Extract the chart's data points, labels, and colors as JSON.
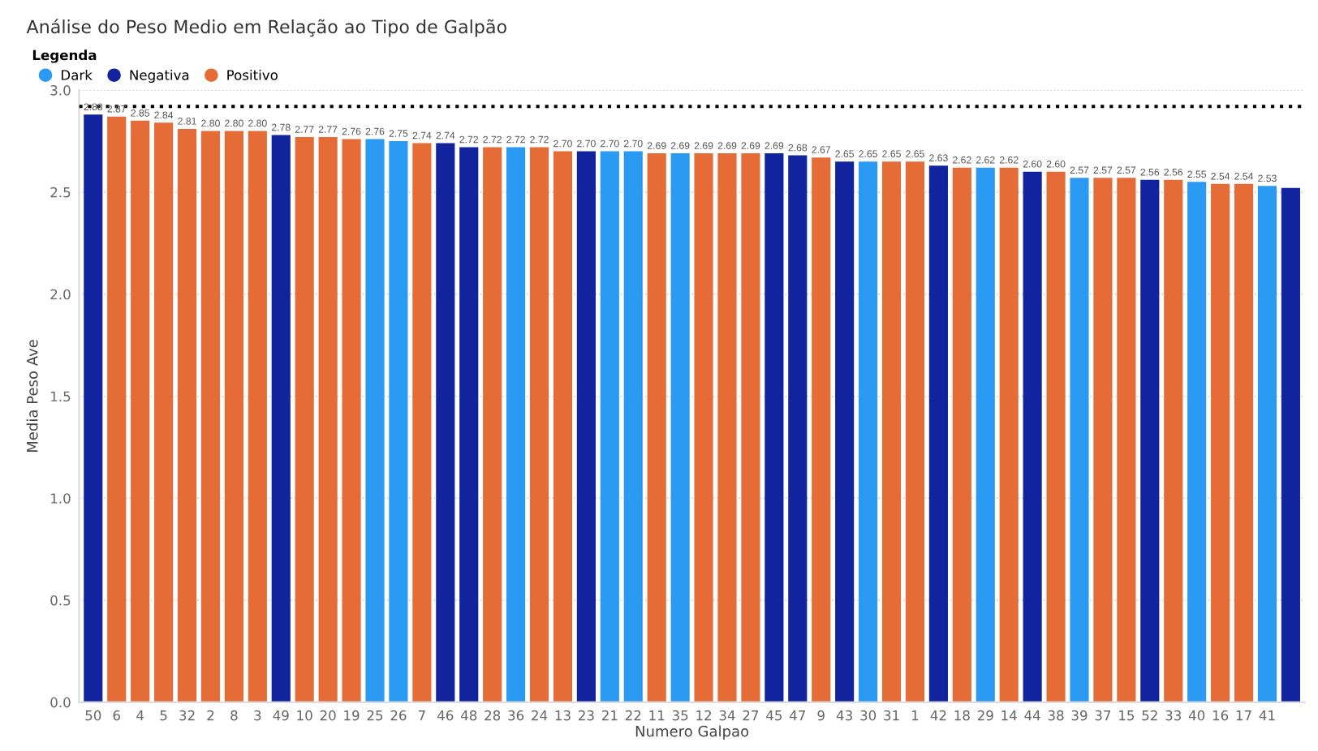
{
  "chart_data": {
    "type": "bar",
    "title": "Análise do Peso Medio em Relação ao Tipo de Galpão",
    "xlabel": "Numero Galpao",
    "ylabel": "Media Peso Ave",
    "legend_title": "Legenda",
    "categories": [
      "50",
      "6",
      "4",
      "5",
      "32",
      "2",
      "8",
      "3",
      "49",
      "10",
      "20",
      "19",
      "25",
      "26",
      "7",
      "46",
      "48",
      "28",
      "36",
      "24",
      "13",
      "23",
      "21",
      "22",
      "11",
      "35",
      "12",
      "34",
      "27",
      "45",
      "47",
      "9",
      "43",
      "30",
      "31",
      "1",
      "42",
      "18",
      "29",
      "14",
      "44",
      "38",
      "39",
      "37",
      "15",
      "52",
      "33",
      "40",
      "16",
      "17",
      "41",
      null
    ],
    "series": [
      {
        "name": "Dark",
        "color": "#2b9af3",
        "values": [
          null,
          null,
          null,
          null,
          null,
          null,
          null,
          null,
          null,
          null,
          null,
          null,
          2.76,
          2.75,
          null,
          null,
          null,
          null,
          2.72,
          null,
          null,
          null,
          2.7,
          2.7,
          null,
          2.69,
          null,
          null,
          null,
          null,
          null,
          null,
          null,
          2.65,
          null,
          null,
          null,
          null,
          2.62,
          null,
          null,
          null,
          2.57,
          null,
          null,
          null,
          null,
          2.55,
          null,
          null,
          2.53,
          null
        ],
        "value_labels": [
          null,
          null,
          null,
          null,
          null,
          null,
          null,
          null,
          null,
          null,
          null,
          null,
          "2.76",
          "2.75",
          null,
          null,
          null,
          null,
          "2.72",
          null,
          null,
          null,
          "2.70",
          "2.70",
          null,
          "2.69",
          null,
          null,
          null,
          null,
          null,
          null,
          null,
          "2.65",
          null,
          null,
          null,
          null,
          "2.62",
          null,
          null,
          null,
          "2.57",
          null,
          null,
          null,
          null,
          "2.55",
          null,
          null,
          "2.53",
          null
        ]
      },
      {
        "name": "Negativa",
        "color": "#12239e",
        "values": [
          2.88,
          null,
          null,
          null,
          null,
          null,
          null,
          null,
          2.78,
          null,
          null,
          null,
          null,
          null,
          null,
          2.74,
          2.72,
          null,
          null,
          null,
          null,
          2.7,
          null,
          null,
          null,
          null,
          null,
          null,
          null,
          2.69,
          2.68,
          null,
          2.65,
          null,
          null,
          null,
          2.63,
          null,
          null,
          null,
          2.6,
          null,
          null,
          null,
          null,
          2.56,
          null,
          null,
          null,
          null,
          null,
          2.52
        ],
        "value_labels": [
          "2.88",
          null,
          null,
          null,
          null,
          null,
          null,
          null,
          "2.78",
          null,
          null,
          null,
          null,
          null,
          null,
          "2.74",
          "2.72",
          null,
          null,
          null,
          null,
          "2.70",
          null,
          null,
          null,
          null,
          null,
          null,
          null,
          "2.69",
          "2.68",
          null,
          "2.65",
          null,
          null,
          null,
          "2.63",
          null,
          null,
          null,
          "2.60",
          null,
          null,
          null,
          null,
          "2.56",
          null,
          null,
          null,
          null,
          null,
          null
        ]
      },
      {
        "name": "Positivo",
        "color": "#e66c37",
        "values": [
          null,
          2.87,
          2.85,
          2.84,
          2.81,
          2.8,
          2.8,
          2.8,
          null,
          2.77,
          2.77,
          2.76,
          null,
          null,
          2.74,
          null,
          null,
          2.72,
          null,
          2.72,
          2.7,
          null,
          null,
          null,
          2.69,
          null,
          2.69,
          2.69,
          2.69,
          null,
          null,
          2.67,
          null,
          null,
          2.65,
          2.65,
          null,
          2.62,
          null,
          2.62,
          null,
          2.6,
          null,
          2.57,
          2.57,
          null,
          2.56,
          null,
          2.54,
          2.54,
          null,
          null
        ],
        "value_labels": [
          null,
          "2.87",
          "2.85",
          "2.84",
          "2.81",
          "2.80",
          "2.80",
          "2.80",
          null,
          "2.77",
          "2.77",
          "2.76",
          null,
          null,
          "2.74",
          null,
          null,
          "2.72",
          null,
          "2.72",
          "2.70",
          null,
          null,
          null,
          "2.69",
          null,
          "2.69",
          "2.69",
          "2.69",
          null,
          null,
          "2.67",
          null,
          null,
          "2.65",
          "2.65",
          null,
          "2.62",
          null,
          "2.62",
          null,
          "2.60",
          null,
          "2.57",
          "2.57",
          null,
          "2.56",
          null,
          "2.54",
          "2.54",
          null,
          null
        ]
      }
    ],
    "ylim": [
      0,
      3.0
    ],
    "yticks": [
      {
        "value": 0,
        "label": "0.0"
      },
      {
        "value": 0.5,
        "label": "0.5"
      },
      {
        "value": 1.0,
        "label": "1.0"
      },
      {
        "value": 1.5,
        "label": "1.5"
      },
      {
        "value": 2.0,
        "label": "2.0"
      },
      {
        "value": 2.5,
        "label": "2.5"
      },
      {
        "value": 3.0,
        "label": "3.0"
      }
    ],
    "ref_lines": [
      {
        "axis": "y",
        "value": 2.92,
        "color": "#000000",
        "line_style": "dotted"
      }
    ],
    "grid": "y",
    "legend": "top left"
  }
}
